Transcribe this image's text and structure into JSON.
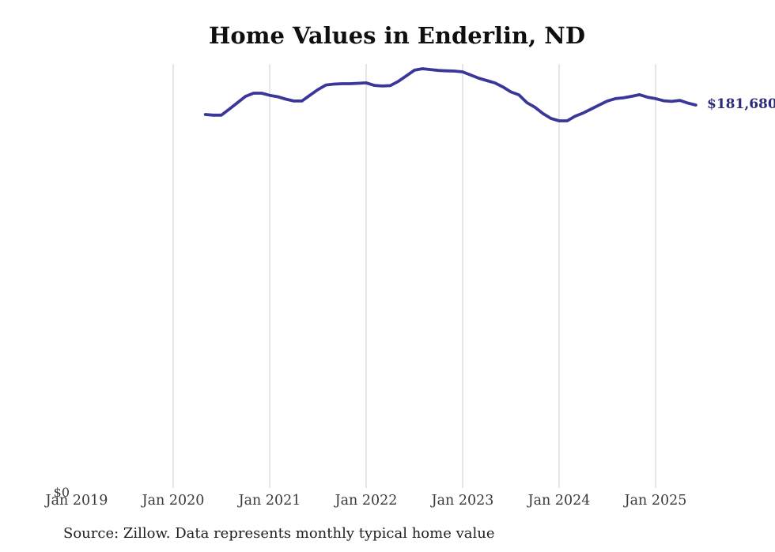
{
  "page": {
    "title": "Home Values in Enderlin, ND",
    "zero_label": "$0",
    "end_label": "$181,680",
    "source_note": "Source: Zillow. Data represents monthly typical home value"
  },
  "colors": {
    "background": "#ffffff",
    "title": "#0f0f0f",
    "line": "#3b3799",
    "end_label": "#2d2b79",
    "gridline": "#cccccc",
    "axis_label": "#3a3a3a",
    "source": "#1f1f1f"
  },
  "chart_data": {
    "type": "line",
    "title": "Home Values in Enderlin, ND",
    "xlabel": "",
    "ylabel": "",
    "x_frequency": "monthly",
    "x_start": "2020-05",
    "x_end": "2025-06",
    "x_tick_labels": [
      "Jan 2019",
      "Jan 2020",
      "Jan 2021",
      "Jan 2022",
      "Jan 2023",
      "Jan 2024",
      "Jan 2025"
    ],
    "y_tick_labels": [
      "$0"
    ],
    "ylim": [
      0,
      201000
    ],
    "grid": "vertical-only",
    "legend": "none",
    "end_annotation": "$181,680",
    "source": "Source: Zillow. Data represents monthly typical home value",
    "series": [
      {
        "name": "Typical home value (USD)",
        "color": "#3b3799",
        "values": [
          177200,
          176900,
          176900,
          179800,
          182800,
          185800,
          187300,
          187300,
          186300,
          185600,
          184500,
          183600,
          183600,
          186300,
          189000,
          191200,
          191600,
          191800,
          191800,
          192000,
          192200,
          191000,
          190700,
          190900,
          192900,
          195500,
          198200,
          198900,
          198500,
          198100,
          197900,
          197800,
          197400,
          195900,
          194400,
          193300,
          192200,
          190300,
          187900,
          186500,
          182800,
          180600,
          177600,
          175300,
          174200,
          174200,
          176400,
          177900,
          179800,
          181700,
          183600,
          184700,
          185100,
          185800,
          186600,
          185400,
          184700,
          183700,
          183400,
          183900,
          182600,
          181680
        ]
      }
    ]
  }
}
